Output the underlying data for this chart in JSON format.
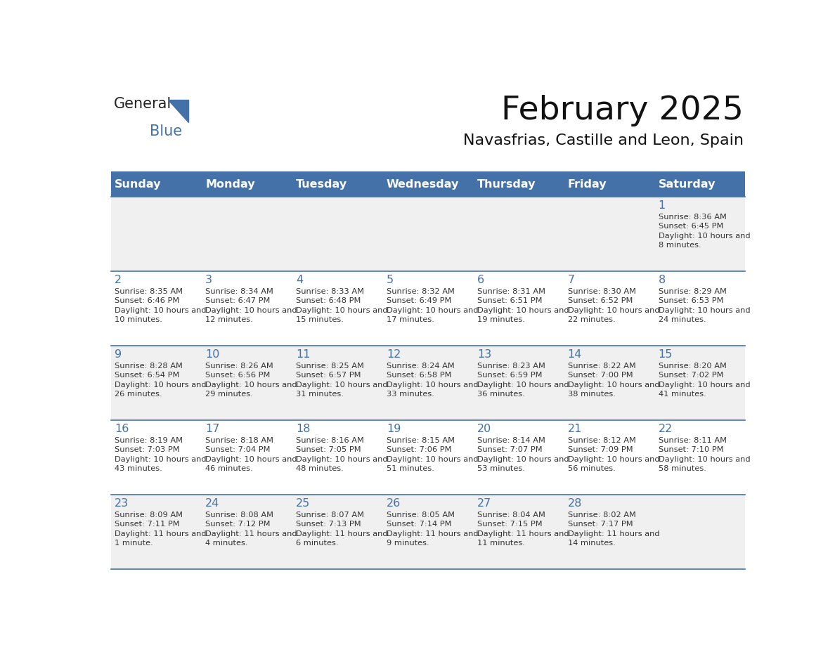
{
  "title": "February 2025",
  "subtitle": "Navasfrias, Castille and Leon, Spain",
  "header_bg": "#4472a8",
  "header_text_color": "#ffffff",
  "day_names": [
    "Sunday",
    "Monday",
    "Tuesday",
    "Wednesday",
    "Thursday",
    "Friday",
    "Saturday"
  ],
  "row_bg_even": "#f0f0f0",
  "row_bg_odd": "#ffffff",
  "cell_text_color": "#333333",
  "day_num_color": "#4472a8",
  "grid_line_color": "#4472a8",
  "logo_general_color": "#222222",
  "logo_blue_color": "#4472a8",
  "days": [
    {
      "day": 1,
      "col": 6,
      "row": 0,
      "sunrise": "8:36 AM",
      "sunset": "6:45 PM",
      "daylight": "10 hours and 8 minutes."
    },
    {
      "day": 2,
      "col": 0,
      "row": 1,
      "sunrise": "8:35 AM",
      "sunset": "6:46 PM",
      "daylight": "10 hours and 10 minutes."
    },
    {
      "day": 3,
      "col": 1,
      "row": 1,
      "sunrise": "8:34 AM",
      "sunset": "6:47 PM",
      "daylight": "10 hours and 12 minutes."
    },
    {
      "day": 4,
      "col": 2,
      "row": 1,
      "sunrise": "8:33 AM",
      "sunset": "6:48 PM",
      "daylight": "10 hours and 15 minutes."
    },
    {
      "day": 5,
      "col": 3,
      "row": 1,
      "sunrise": "8:32 AM",
      "sunset": "6:49 PM",
      "daylight": "10 hours and 17 minutes."
    },
    {
      "day": 6,
      "col": 4,
      "row": 1,
      "sunrise": "8:31 AM",
      "sunset": "6:51 PM",
      "daylight": "10 hours and 19 minutes."
    },
    {
      "day": 7,
      "col": 5,
      "row": 1,
      "sunrise": "8:30 AM",
      "sunset": "6:52 PM",
      "daylight": "10 hours and 22 minutes."
    },
    {
      "day": 8,
      "col": 6,
      "row": 1,
      "sunrise": "8:29 AM",
      "sunset": "6:53 PM",
      "daylight": "10 hours and 24 minutes."
    },
    {
      "day": 9,
      "col": 0,
      "row": 2,
      "sunrise": "8:28 AM",
      "sunset": "6:54 PM",
      "daylight": "10 hours and 26 minutes."
    },
    {
      "day": 10,
      "col": 1,
      "row": 2,
      "sunrise": "8:26 AM",
      "sunset": "6:56 PM",
      "daylight": "10 hours and 29 minutes."
    },
    {
      "day": 11,
      "col": 2,
      "row": 2,
      "sunrise": "8:25 AM",
      "sunset": "6:57 PM",
      "daylight": "10 hours and 31 minutes."
    },
    {
      "day": 12,
      "col": 3,
      "row": 2,
      "sunrise": "8:24 AM",
      "sunset": "6:58 PM",
      "daylight": "10 hours and 33 minutes."
    },
    {
      "day": 13,
      "col": 4,
      "row": 2,
      "sunrise": "8:23 AM",
      "sunset": "6:59 PM",
      "daylight": "10 hours and 36 minutes."
    },
    {
      "day": 14,
      "col": 5,
      "row": 2,
      "sunrise": "8:22 AM",
      "sunset": "7:00 PM",
      "daylight": "10 hours and 38 minutes."
    },
    {
      "day": 15,
      "col": 6,
      "row": 2,
      "sunrise": "8:20 AM",
      "sunset": "7:02 PM",
      "daylight": "10 hours and 41 minutes."
    },
    {
      "day": 16,
      "col": 0,
      "row": 3,
      "sunrise": "8:19 AM",
      "sunset": "7:03 PM",
      "daylight": "10 hours and 43 minutes."
    },
    {
      "day": 17,
      "col": 1,
      "row": 3,
      "sunrise": "8:18 AM",
      "sunset": "7:04 PM",
      "daylight": "10 hours and 46 minutes."
    },
    {
      "day": 18,
      "col": 2,
      "row": 3,
      "sunrise": "8:16 AM",
      "sunset": "7:05 PM",
      "daylight": "10 hours and 48 minutes."
    },
    {
      "day": 19,
      "col": 3,
      "row": 3,
      "sunrise": "8:15 AM",
      "sunset": "7:06 PM",
      "daylight": "10 hours and 51 minutes."
    },
    {
      "day": 20,
      "col": 4,
      "row": 3,
      "sunrise": "8:14 AM",
      "sunset": "7:07 PM",
      "daylight": "10 hours and 53 minutes."
    },
    {
      "day": 21,
      "col": 5,
      "row": 3,
      "sunrise": "8:12 AM",
      "sunset": "7:09 PM",
      "daylight": "10 hours and 56 minutes."
    },
    {
      "day": 22,
      "col": 6,
      "row": 3,
      "sunrise": "8:11 AM",
      "sunset": "7:10 PM",
      "daylight": "10 hours and 58 minutes."
    },
    {
      "day": 23,
      "col": 0,
      "row": 4,
      "sunrise": "8:09 AM",
      "sunset": "7:11 PM",
      "daylight": "11 hours and 1 minute."
    },
    {
      "day": 24,
      "col": 1,
      "row": 4,
      "sunrise": "8:08 AM",
      "sunset": "7:12 PM",
      "daylight": "11 hours and 4 minutes."
    },
    {
      "day": 25,
      "col": 2,
      "row": 4,
      "sunrise": "8:07 AM",
      "sunset": "7:13 PM",
      "daylight": "11 hours and 6 minutes."
    },
    {
      "day": 26,
      "col": 3,
      "row": 4,
      "sunrise": "8:05 AM",
      "sunset": "7:14 PM",
      "daylight": "11 hours and 9 minutes."
    },
    {
      "day": 27,
      "col": 4,
      "row": 4,
      "sunrise": "8:04 AM",
      "sunset": "7:15 PM",
      "daylight": "11 hours and 11 minutes."
    },
    {
      "day": 28,
      "col": 5,
      "row": 4,
      "sunrise": "8:02 AM",
      "sunset": "7:17 PM",
      "daylight": "11 hours and 14 minutes."
    }
  ]
}
